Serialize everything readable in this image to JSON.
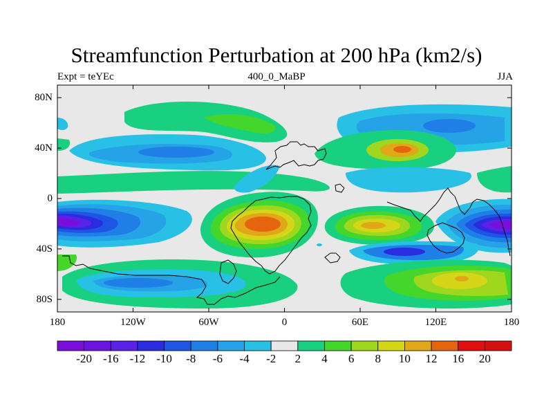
{
  "header": {
    "title": "Streamfunction Perturbation at 200 hPa (km2/s)",
    "left_label": "Expt = teYEc",
    "center_label": "400_0_MaBP",
    "right_label": "JJA"
  },
  "map": {
    "lat_tick_labels": [
      "80N",
      "40N",
      "0",
      "40S",
      "80S"
    ],
    "lon_tick_labels": [
      "180",
      "120W",
      "60W",
      "0",
      "60E",
      "120E",
      "180"
    ],
    "colors": {
      "background": "#e8e8e8",
      "coast": "#000000"
    }
  },
  "colorbar": {
    "labels": [
      "-20",
      "-16",
      "-12",
      "-10",
      "-8",
      "-6",
      "-4",
      "-2",
      "2",
      "4",
      "6",
      "8",
      "10",
      "12",
      "16",
      "20"
    ],
    "colors": [
      "#7a0fdc",
      "#6a14e0",
      "#5a22e6",
      "#2a2cdf",
      "#1f55e4",
      "#1f7fe6",
      "#26a2e6",
      "#29c0e6",
      "#e8e8e8",
      "#18d080",
      "#44d62a",
      "#9fd61e",
      "#d6d619",
      "#e0a818",
      "#e46410",
      "#e01010"
    ]
  }
}
